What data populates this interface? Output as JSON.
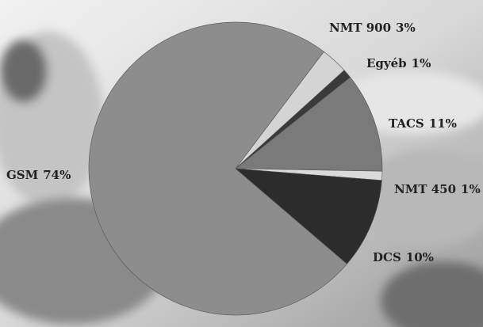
{
  "chart_data": {
    "type": "pie",
    "categories": [
      "NMT 900",
      "Egyéb",
      "TACS",
      "NMT 450",
      "DCS",
      "GSM"
    ],
    "values": [
      3,
      1,
      11,
      1,
      10,
      74
    ],
    "value_labels": [
      "3%",
      "1%",
      "11%",
      "1%",
      "10%",
      "74%"
    ],
    "colors": [
      "#d4d4d4",
      "#3a3a3a",
      "#7a7a7a",
      "#dadada",
      "#2c2c2c",
      "#8d8d8d"
    ]
  }
}
